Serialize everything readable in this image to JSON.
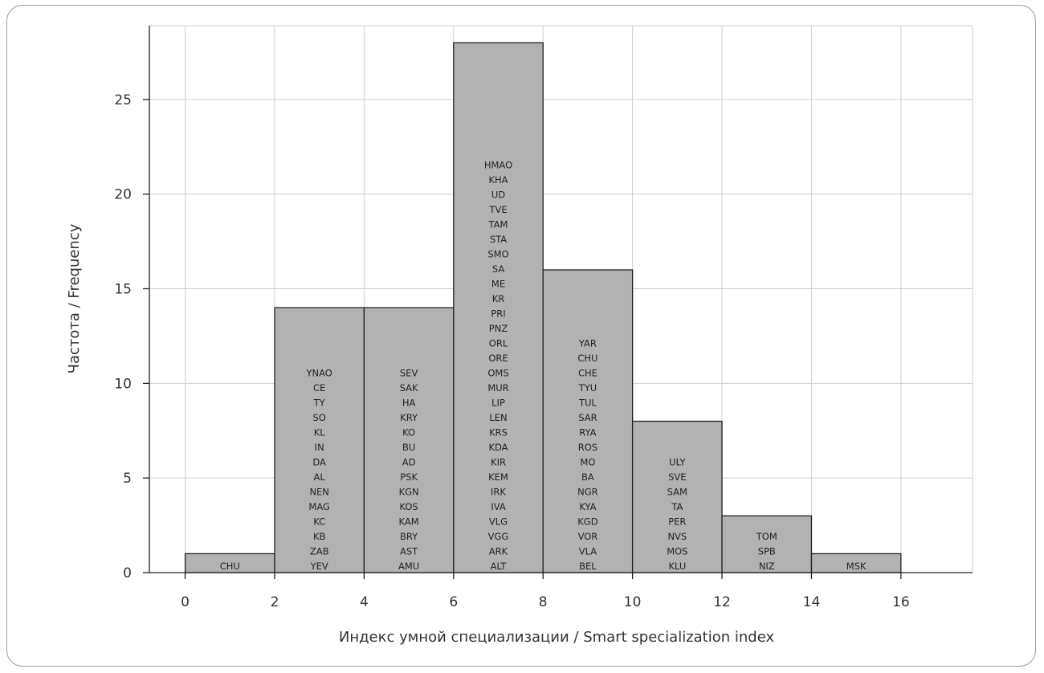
{
  "chart_data": {
    "type": "histogram",
    "xlabel": "Индекс умной специализации / Smart specialization index",
    "ylabel": "Частота / Frequency",
    "xlim": [
      -0.8,
      17.6
    ],
    "ylim": [
      0,
      28.9
    ],
    "xticks": [
      0,
      2,
      4,
      6,
      8,
      10,
      12,
      14,
      16
    ],
    "yticks": [
      0,
      5,
      10,
      15,
      20,
      25
    ],
    "grid": true,
    "bar_color": "#b2b2b2",
    "bins": [
      {
        "start": 0,
        "end": 2,
        "count": 1,
        "regions": [
          "CHU"
        ]
      },
      {
        "start": 2,
        "end": 4,
        "count": 14,
        "regions": [
          "YNAO",
          "CE",
          "TY",
          "SO",
          "KL",
          "IN",
          "DA",
          "AL",
          "NEN",
          "MAG",
          "KC",
          "KB",
          "ZAB",
          "YEV"
        ]
      },
      {
        "start": 4,
        "end": 6,
        "count": 14,
        "regions": [
          "SEV",
          "SAK",
          "HA",
          "KRY",
          "KO",
          "BU",
          "AD",
          "PSK",
          "KGN",
          "KOS",
          "KAM",
          "BRY",
          "AST",
          "AMU"
        ]
      },
      {
        "start": 6,
        "end": 8,
        "count": 28,
        "regions": [
          "HMAO",
          "KHA",
          "UD",
          "TVE",
          "TAM",
          "STA",
          "SMO",
          "SA",
          "ME",
          "KR",
          "PRI",
          "PNZ",
          "ORL",
          "ORE",
          "OMS",
          "MUR",
          "LIP",
          "LEN",
          "KRS",
          "KDA",
          "KIR",
          "KEM",
          "IRK",
          "IVA",
          "VLG",
          "VGG",
          "ARK",
          "ALT"
        ]
      },
      {
        "start": 8,
        "end": 10,
        "count": 16,
        "regions": [
          "YAR",
          "CHU",
          "CHE",
          "TYU",
          "TUL",
          "SAR",
          "RYA",
          "ROS",
          "MO",
          "BA",
          "NGR",
          "KYA",
          "KGD",
          "VOR",
          "VLA",
          "BEL"
        ]
      },
      {
        "start": 10,
        "end": 12,
        "count": 8,
        "regions": [
          "ULY",
          "SVE",
          "SAM",
          "TA",
          "PER",
          "NVS",
          "MOS",
          "KLU"
        ]
      },
      {
        "start": 12,
        "end": 14,
        "count": 3,
        "regions": [
          "TOM",
          "SPB",
          "NIZ"
        ]
      },
      {
        "start": 14,
        "end": 16,
        "count": 1,
        "regions": [
          "MSK"
        ]
      }
    ]
  }
}
